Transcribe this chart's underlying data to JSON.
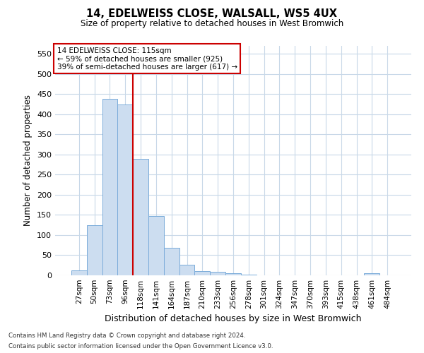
{
  "title": "14, EDELWEISS CLOSE, WALSALL, WS5 4UX",
  "subtitle": "Size of property relative to detached houses in West Bromwich",
  "xlabel": "Distribution of detached houses by size in West Bromwich",
  "ylabel": "Number of detached properties",
  "bar_color": "#ccddf0",
  "bar_edge_color": "#7aabda",
  "grid_color": "#c8d8e8",
  "vline_color": "#cc0000",
  "vline_position": 4,
  "annotation_text": "14 EDELWEISS CLOSE: 115sqm\n← 59% of detached houses are smaller (925)\n39% of semi-detached houses are larger (617) →",
  "annotation_box_color": "#ffffff",
  "annotation_box_edge": "#cc0000",
  "categories": [
    "27sqm",
    "50sqm",
    "73sqm",
    "96sqm",
    "118sqm",
    "141sqm",
    "164sqm",
    "187sqm",
    "210sqm",
    "233sqm",
    "256sqm",
    "278sqm",
    "301sqm",
    "324sqm",
    "347sqm",
    "370sqm",
    "393sqm",
    "415sqm",
    "438sqm",
    "461sqm",
    "484sqm"
  ],
  "values": [
    12,
    125,
    438,
    425,
    290,
    147,
    68,
    27,
    11,
    8,
    5,
    2,
    0,
    0,
    0,
    0,
    0,
    0,
    0,
    6,
    0
  ],
  "ylim": [
    0,
    570
  ],
  "yticks": [
    0,
    50,
    100,
    150,
    200,
    250,
    300,
    350,
    400,
    450,
    500,
    550
  ],
  "footnote1": "Contains HM Land Registry data © Crown copyright and database right 2024.",
  "footnote2": "Contains public sector information licensed under the Open Government Licence v3.0."
}
